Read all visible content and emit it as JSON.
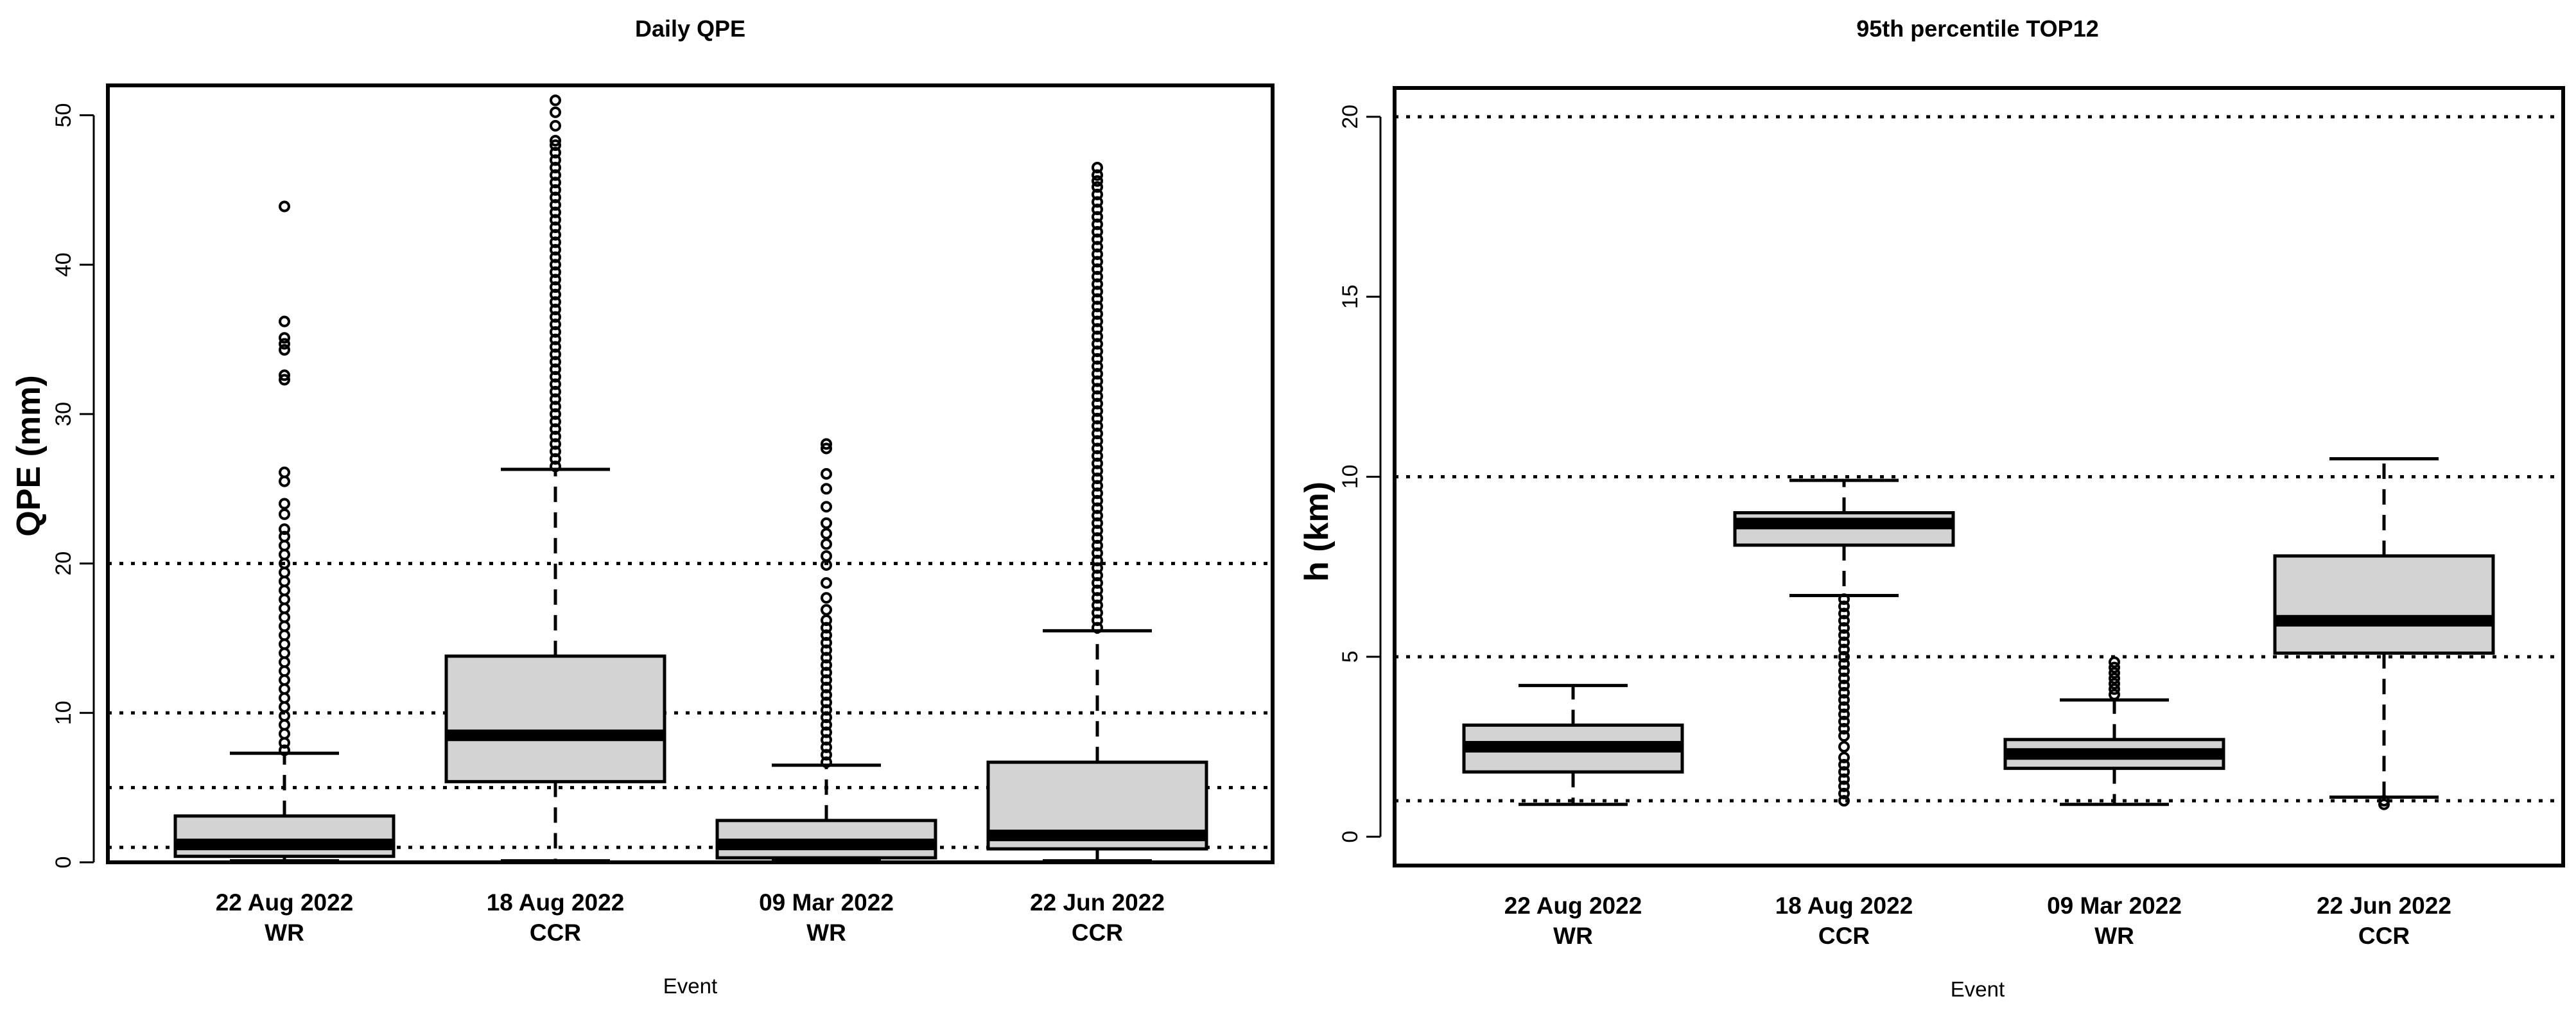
{
  "chart_data": [
    {
      "type": "boxplot",
      "title": "Daily QPE",
      "xlabel": "Event",
      "ylabel": "QPE (mm)",
      "ylim": [
        0,
        52
      ],
      "yticks": [
        0,
        10,
        20,
        30,
        40,
        50
      ],
      "reference_lines": [
        1,
        5,
        10,
        20
      ],
      "box_color": "#d3d3d3",
      "categories": [
        {
          "date": "22 Aug 2022",
          "type": "WR"
        },
        {
          "date": "18 Aug 2022",
          "type": "CCR"
        },
        {
          "date": "09 Mar 2022",
          "type": "WR"
        },
        {
          "date": "22 Jun 2022",
          "type": "CCR"
        }
      ],
      "boxes": [
        {
          "whisker_low": 0.1,
          "q1": 0.4,
          "median": 1.2,
          "q3": 3.1,
          "whisker_high": 7.3,
          "outliers": [
            7.5,
            8.0,
            8.6,
            9.2,
            9.8,
            10.4,
            11.0,
            11.6,
            12.2,
            12.8,
            13.4,
            14.0,
            14.6,
            15.2,
            15.8,
            16.4,
            17.0,
            17.6,
            18.2,
            18.8,
            19.4,
            20.0,
            20.6,
            21.2,
            21.8,
            22.3,
            23.3,
            24.0,
            25.5,
            26.1,
            32.3,
            32.6,
            34.3,
            34.7,
            35.1,
            36.2,
            43.9
          ]
        },
        {
          "whisker_low": 0.1,
          "q1": 5.4,
          "median": 8.5,
          "q3": 13.8,
          "whisker_high": 26.3,
          "outliers": [
            26.5,
            27.0,
            27.5,
            28.0,
            28.5,
            29.0,
            29.5,
            30.0,
            30.5,
            31.0,
            31.5,
            32.0,
            32.5,
            33.0,
            33.5,
            34.0,
            34.5,
            35.0,
            35.5,
            36.0,
            36.5,
            37.0,
            37.5,
            38.0,
            38.5,
            39.0,
            39.5,
            40.0,
            40.5,
            41.0,
            41.5,
            42.0,
            42.5,
            43.0,
            43.5,
            44.0,
            44.5,
            45.0,
            45.5,
            46.0,
            46.5,
            47.0,
            47.5,
            48.0,
            48.3,
            49.3,
            50.2,
            51.0
          ]
        },
        {
          "whisker_low": 0.1,
          "q1": 0.3,
          "median": 1.2,
          "q3": 2.8,
          "whisker_high": 6.5,
          "outliers": [
            6.7,
            7.2,
            7.7,
            8.2,
            8.7,
            9.2,
            9.7,
            10.2,
            10.7,
            11.2,
            11.7,
            12.2,
            12.7,
            13.2,
            13.7,
            14.2,
            14.7,
            15.2,
            15.7,
            16.2,
            16.9,
            17.7,
            18.7,
            19.9,
            20.5,
            21.3,
            22.0,
            22.7,
            23.8,
            25.0,
            26.0,
            27.7,
            28.0
          ]
        },
        {
          "whisker_low": 0.1,
          "q1": 0.9,
          "median": 1.8,
          "q3": 6.7,
          "whisker_high": 15.5,
          "outliers": [
            15.7,
            16.2,
            16.7,
            17.2,
            17.7,
            18.2,
            18.7,
            19.2,
            19.7,
            20.2,
            20.7,
            21.2,
            21.7,
            22.2,
            22.7,
            23.2,
            23.7,
            24.2,
            24.7,
            25.2,
            25.7,
            26.2,
            26.7,
            27.2,
            27.7,
            28.2,
            28.7,
            29.2,
            29.7,
            30.2,
            30.7,
            31.2,
            31.7,
            32.2,
            32.7,
            33.2,
            33.7,
            34.2,
            34.7,
            35.2,
            35.7,
            36.2,
            36.7,
            37.2,
            37.7,
            38.2,
            38.7,
            39.2,
            39.7,
            40.2,
            40.7,
            41.2,
            41.7,
            42.2,
            42.7,
            43.2,
            43.7,
            44.2,
            44.7,
            45.2,
            45.6,
            46.0,
            46.5
          ]
        }
      ]
    },
    {
      "type": "boxplot",
      "title": "95th percentile TOP12",
      "xlabel": "Event",
      "ylabel": "h (km)",
      "ylim": [
        -0.8,
        20.8
      ],
      "yticks": [
        0,
        5,
        10,
        15,
        20
      ],
      "reference_lines": [
        1,
        5,
        10,
        20
      ],
      "box_color": "#d3d3d3",
      "categories": [
        {
          "date": "22 Aug 2022",
          "type": "WR"
        },
        {
          "date": "18 Aug 2022",
          "type": "CCR"
        },
        {
          "date": "09 Mar 2022",
          "type": "WR"
        },
        {
          "date": "22 Jun 2022",
          "type": "CCR"
        }
      ],
      "boxes": [
        {
          "whisker_low": 0.9,
          "q1": 1.8,
          "median": 2.5,
          "q3": 3.1,
          "whisker_high": 4.2,
          "outliers": []
        },
        {
          "whisker_low": 6.7,
          "q1": 8.1,
          "median": 8.7,
          "q3": 9.0,
          "whisker_high": 9.9,
          "outliers": [
            1.0,
            1.2,
            1.4,
            1.6,
            1.8,
            2.0,
            2.2,
            2.5,
            2.8,
            3.0,
            3.2,
            3.4,
            3.6,
            3.8,
            4.0,
            4.2,
            4.4,
            4.6,
            4.8,
            5.0,
            5.2,
            5.4,
            5.6,
            5.8,
            6.0,
            6.2,
            6.4,
            6.6
          ]
        },
        {
          "whisker_low": 0.9,
          "q1": 1.9,
          "median": 2.3,
          "q3": 2.7,
          "whisker_high": 3.8,
          "outliers": [
            3.95,
            4.1,
            4.25,
            4.4,
            4.55,
            4.7,
            4.85
          ]
        },
        {
          "whisker_low": 1.1,
          "q1": 5.1,
          "median": 6.0,
          "q3": 7.8,
          "whisker_high": 10.5,
          "outliers": [
            0.9,
            1.0
          ]
        }
      ]
    }
  ]
}
